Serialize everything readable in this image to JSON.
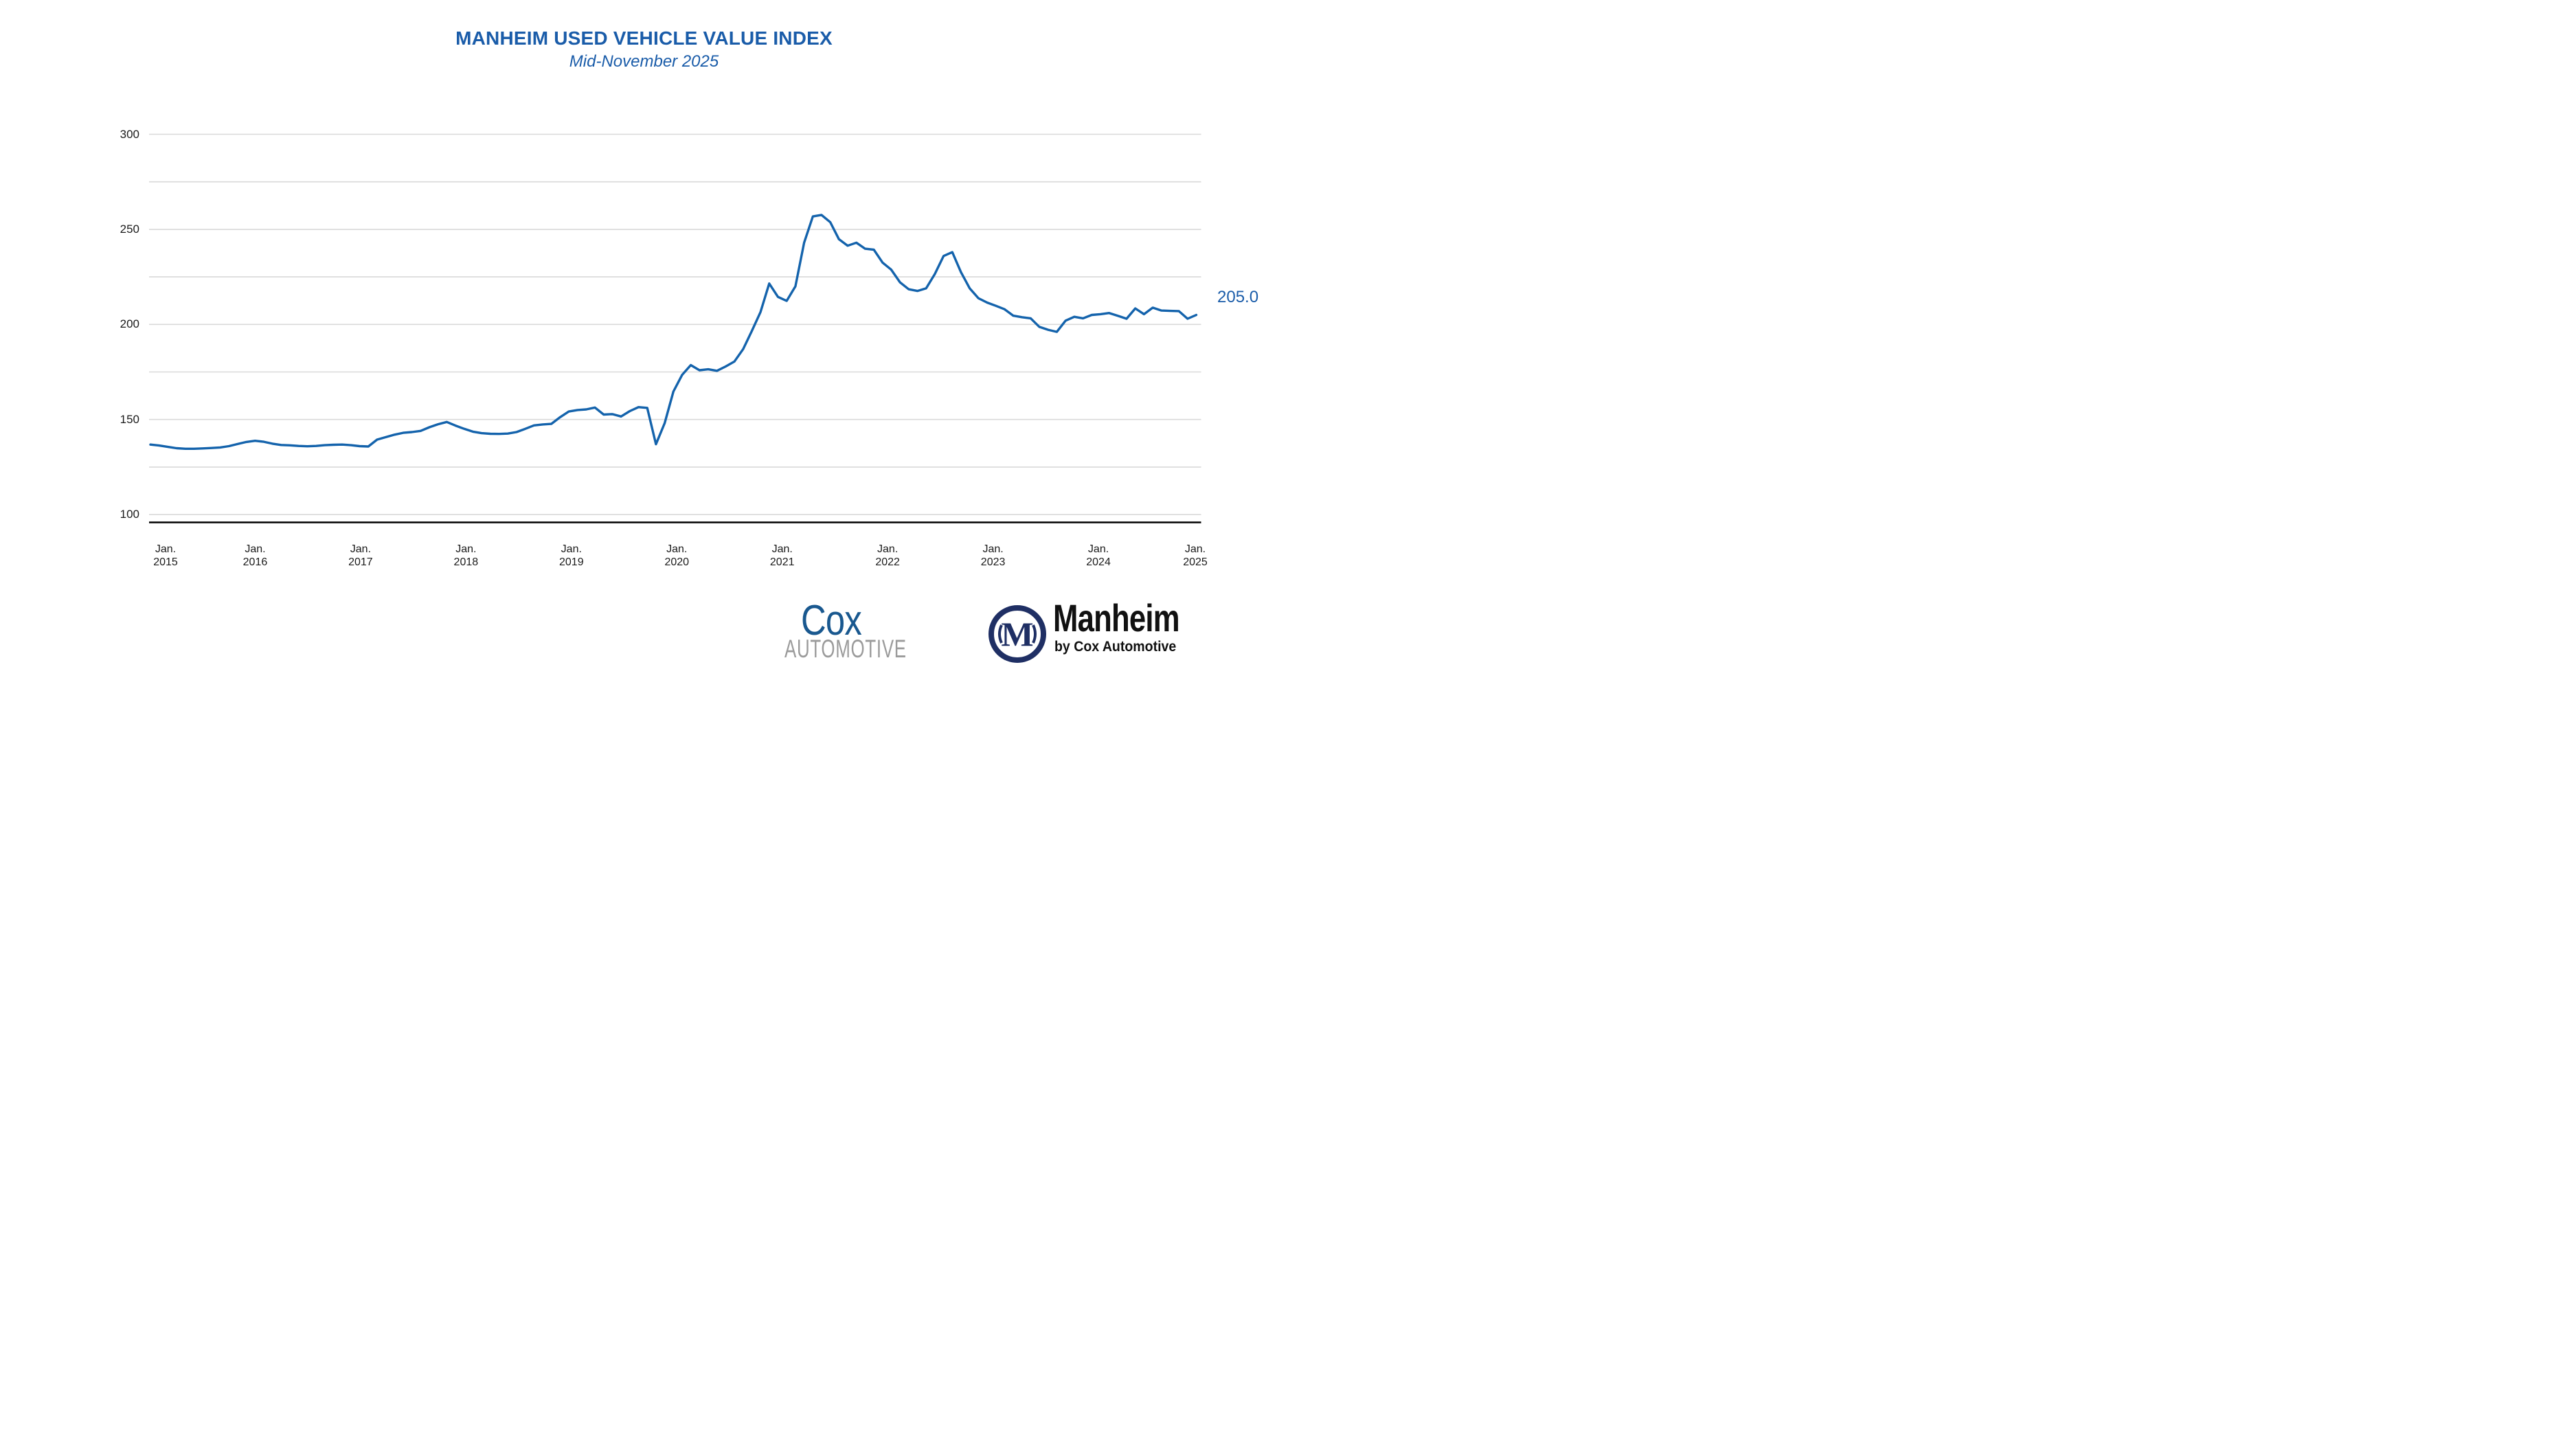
{
  "title": "MANHEIM USED VEHICLE VALUE INDEX",
  "subtitle": "Mid-November 2025",
  "colors": {
    "accent_blue": "#1A5CA9",
    "line_blue": "#1463AC",
    "gridline": "#D9D9D9",
    "axis": "#000000",
    "tick_text": "#1A1A1A",
    "cox_blue": "#19588F",
    "cox_gray": "#9B9B9B",
    "manheim_navy": "#1F2F64"
  },
  "chart_data": {
    "type": "line",
    "title": "MANHEIM USED VEHICLE VALUE INDEX",
    "subtitle": "Mid-November 2025",
    "xlabel": "",
    "ylabel": "",
    "x_tick_month": "Jan.",
    "x_tick_years": [
      "2015",
      "2016",
      "2017",
      "2018",
      "2019",
      "2020",
      "2021",
      "2022",
      "2023",
      "2024",
      "2025"
    ],
    "x_range_note": "Monthly index values from Jan. 2015 through mid-November 2025",
    "y_ticks": [
      300,
      250,
      200,
      150,
      100
    ],
    "y_gridline_interval": 25,
    "ylim": [
      95,
      300
    ],
    "grid": true,
    "legend_position": "none",
    "final_value_label": "205.0",
    "final_value": 205.0,
    "series": [
      {
        "name": "Manheim Used Vehicle Value Index",
        "color": "#1463AC",
        "values": [
          136.8,
          136.3,
          135.6,
          134.9,
          134.6,
          134.6,
          134.8,
          135.0,
          135.3,
          136.0,
          137.1,
          138.2,
          138.8,
          138.3,
          137.3,
          136.6,
          136.4,
          136.1,
          135.9,
          136.1,
          136.5,
          136.7,
          136.8,
          136.5,
          136.0,
          135.8,
          139.4,
          140.7,
          142.0,
          143.0,
          143.4,
          144.0,
          145.9,
          147.5,
          148.7,
          146.8,
          145.1,
          143.6,
          142.8,
          142.5,
          142.4,
          142.6,
          143.4,
          145.1,
          146.9,
          147.4,
          147.7,
          151.2,
          154.2,
          155.0,
          155.3,
          156.3,
          152.6,
          152.8,
          151.6,
          154.4,
          156.5,
          156.1,
          137.0,
          148.1,
          164.7,
          173.4,
          178.6,
          175.9,
          176.4,
          175.6,
          177.9,
          180.5,
          187.0,
          196.5,
          206.5,
          221.5,
          214.5,
          212.4,
          220.0,
          243.0,
          256.8,
          257.6,
          253.8,
          244.8,
          241.4,
          243.0,
          239.8,
          239.3,
          232.5,
          228.8,
          222.2,
          218.5,
          217.6,
          219.0,
          226.5,
          236.0,
          238.0,
          227.5,
          219.0,
          213.8,
          211.5,
          209.8,
          208.0,
          204.6,
          203.8,
          203.2,
          198.7,
          197.2,
          196.1,
          202.0,
          204.0,
          203.2,
          205.0,
          205.4,
          206.0,
          204.5,
          203.0,
          208.4,
          205.4,
          208.8,
          207.3,
          207.1,
          207.0,
          203.0,
          205.0
        ]
      }
    ]
  },
  "footer": {
    "cox": {
      "line1": "Cox",
      "line2": "AUTOMOTIVE"
    },
    "manheim": {
      "monogram": "M",
      "name": "Manheim",
      "tagline": "by Cox Automotive"
    }
  }
}
